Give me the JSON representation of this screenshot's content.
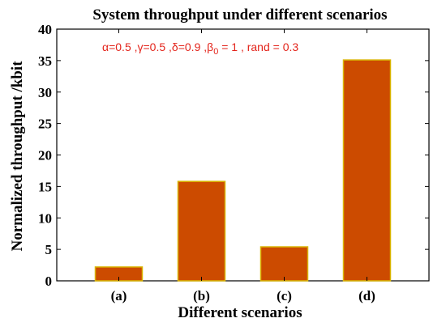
{
  "chart_data": {
    "type": "bar",
    "title": "System throughput under different scenarios",
    "xlabel": "Different scenarios",
    "ylabel": "Normalized throughput /kbit",
    "categories": [
      "(a)",
      "(b)",
      "(c)",
      "(d)"
    ],
    "values": [
      2.2,
      15.8,
      5.4,
      35.1
    ],
    "ylim": [
      0,
      40
    ],
    "yticks": [
      0,
      5,
      10,
      15,
      20,
      25,
      30,
      35,
      40
    ],
    "grid": false,
    "annotation": {
      "pre": "α=0.5 ,γ=0.5 ,δ=0.9 ,β",
      "sub": "0",
      "post": " = 1 , rand = 0.3"
    },
    "colors": {
      "bar_fill": "#cc4b00",
      "bar_edge": "#d9b400",
      "annotation": "#e3241b",
      "axis": "#000000"
    }
  }
}
